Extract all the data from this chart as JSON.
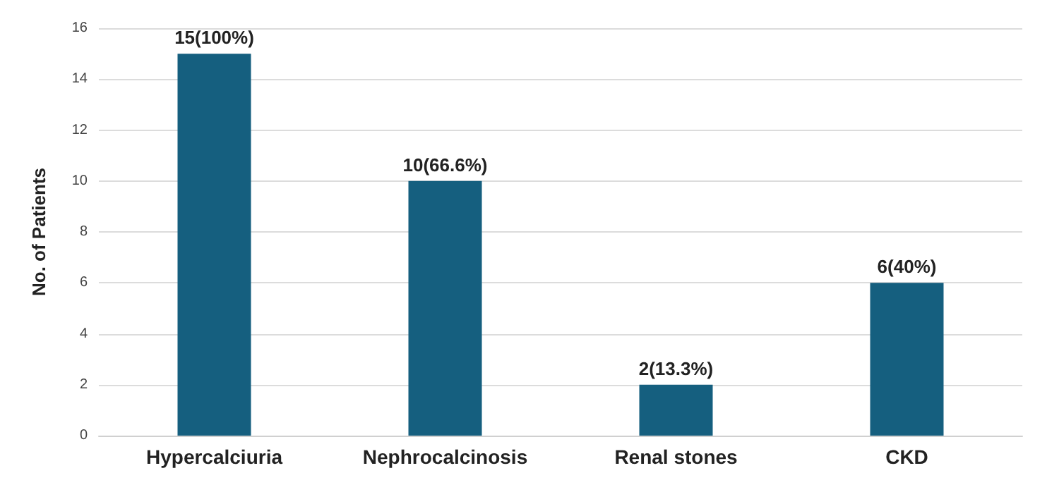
{
  "chart_data": {
    "type": "bar",
    "ylabel": "No. of Patients",
    "categories": [
      "Hypercalciuria",
      "Nephrocalcinosis",
      "Renal stones",
      "CKD"
    ],
    "values": [
      15,
      10,
      2,
      6
    ],
    "value_labels": [
      "15(100%)",
      "10(66.6%)",
      "2(13.3%)",
      "6(40%)"
    ],
    "color": "#155f7f",
    "ylim": [
      0,
      16
    ],
    "yticks": [
      0,
      2,
      4,
      6,
      8,
      10,
      12,
      14,
      16
    ],
    "grid": "y"
  }
}
